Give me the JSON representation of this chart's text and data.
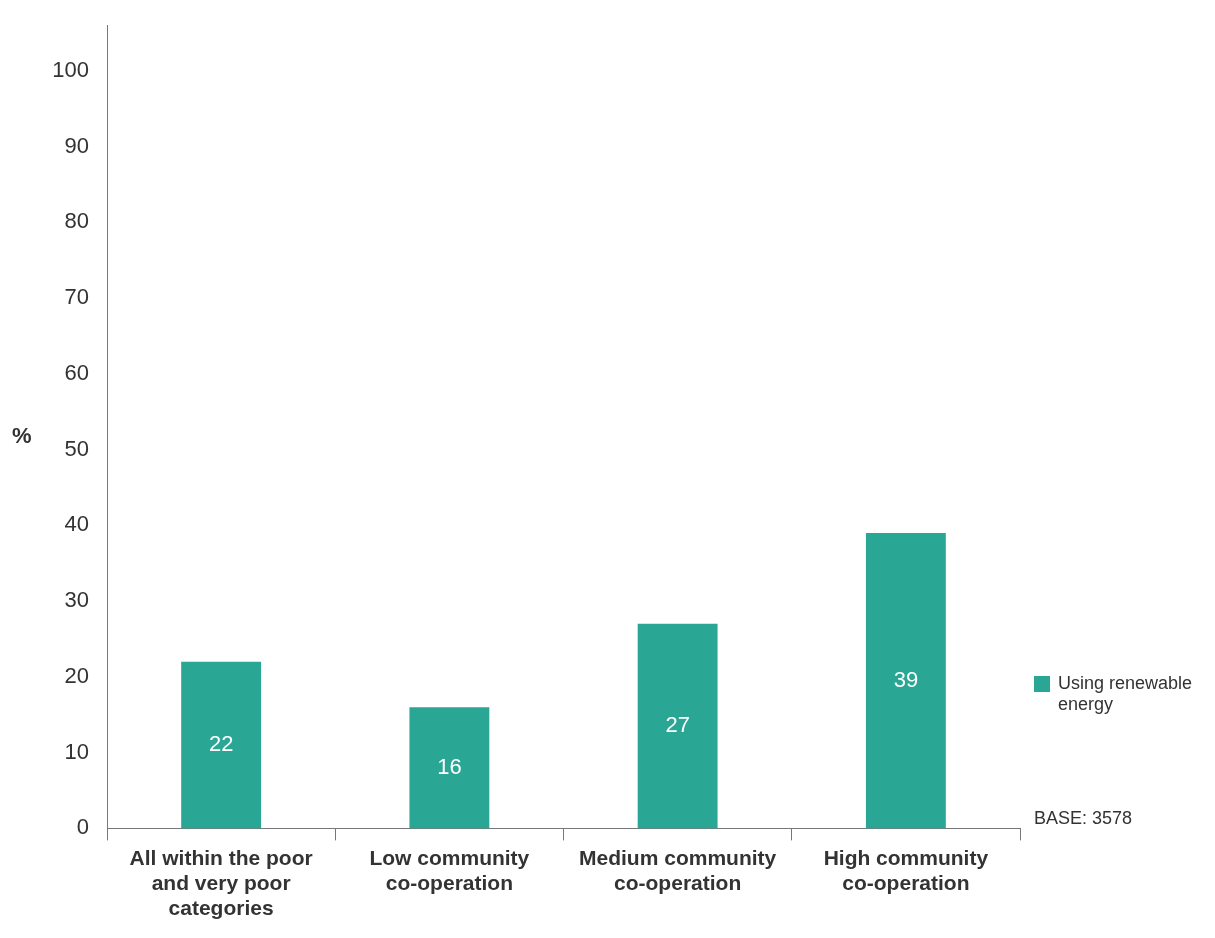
{
  "chart_data": {
    "type": "bar",
    "ylabel": "%",
    "categories": [
      "All within the poor and very poor categories",
      "Low community co-operation",
      "Medium community co-operation",
      "High community co-operation"
    ],
    "series": [
      {
        "name": "Using renewable energy",
        "color": "#29a794",
        "values": [
          22,
          16,
          27,
          39
        ]
      }
    ],
    "ylim": [
      0,
      106
    ],
    "yticks": [
      0,
      10,
      20,
      30,
      40,
      50,
      60,
      70,
      80,
      90,
      100
    ],
    "data_labels": true,
    "legend": "right",
    "annotations": [
      "BASE: 3578"
    ]
  }
}
